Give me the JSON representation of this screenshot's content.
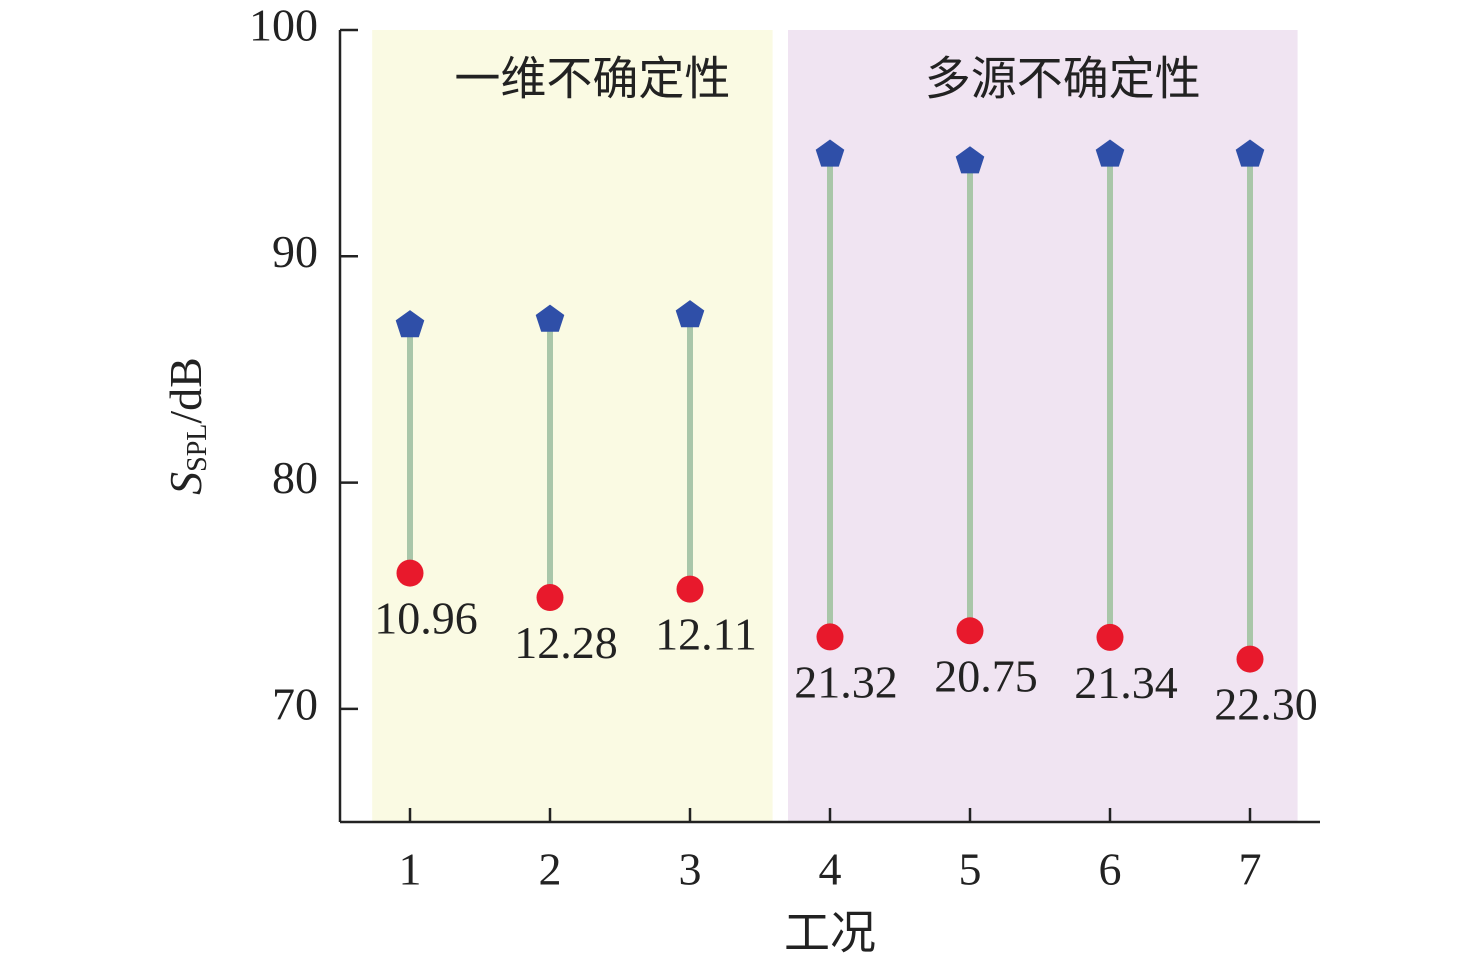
{
  "chart_data": {
    "type": "dumbbell",
    "xlabel": "工况",
    "ylabel": {
      "symbol": "S",
      "subscript": "SPL",
      "unit": "/dB"
    },
    "x": [
      1,
      2,
      3,
      4,
      5,
      6,
      7
    ],
    "xlim": [
      0.5,
      7.5
    ],
    "xticks": [
      1,
      2,
      3,
      4,
      5,
      6,
      7
    ],
    "ylim": [
      65,
      100
    ],
    "yticks": [
      70,
      80,
      90,
      100
    ],
    "high": {
      "color": "#2f4fa8",
      "values": [
        86.96,
        87.2,
        87.4,
        94.5,
        94.2,
        94.5,
        94.5
      ]
    },
    "low": {
      "color": "#e8192c",
      "values": [
        76.0,
        74.92,
        75.29,
        73.18,
        73.45,
        73.16,
        72.2
      ]
    },
    "stem_color": "#a9c6a9",
    "differences": {
      "values": [
        10.96,
        12.28,
        12.11,
        21.32,
        20.75,
        21.34,
        22.3
      ],
      "value_labels": [
        "10.96",
        "12.28",
        "12.11",
        "21.32",
        "20.75",
        "21.34",
        "22.30"
      ]
    },
    "regions": [
      {
        "label": "一维不确定性",
        "xlim": [
          0.73,
          3.59
        ],
        "color": "#fafae3"
      },
      {
        "label": "多源不确定性",
        "xlim": [
          3.7,
          7.34
        ],
        "color": "#f0e4f2"
      }
    ]
  }
}
